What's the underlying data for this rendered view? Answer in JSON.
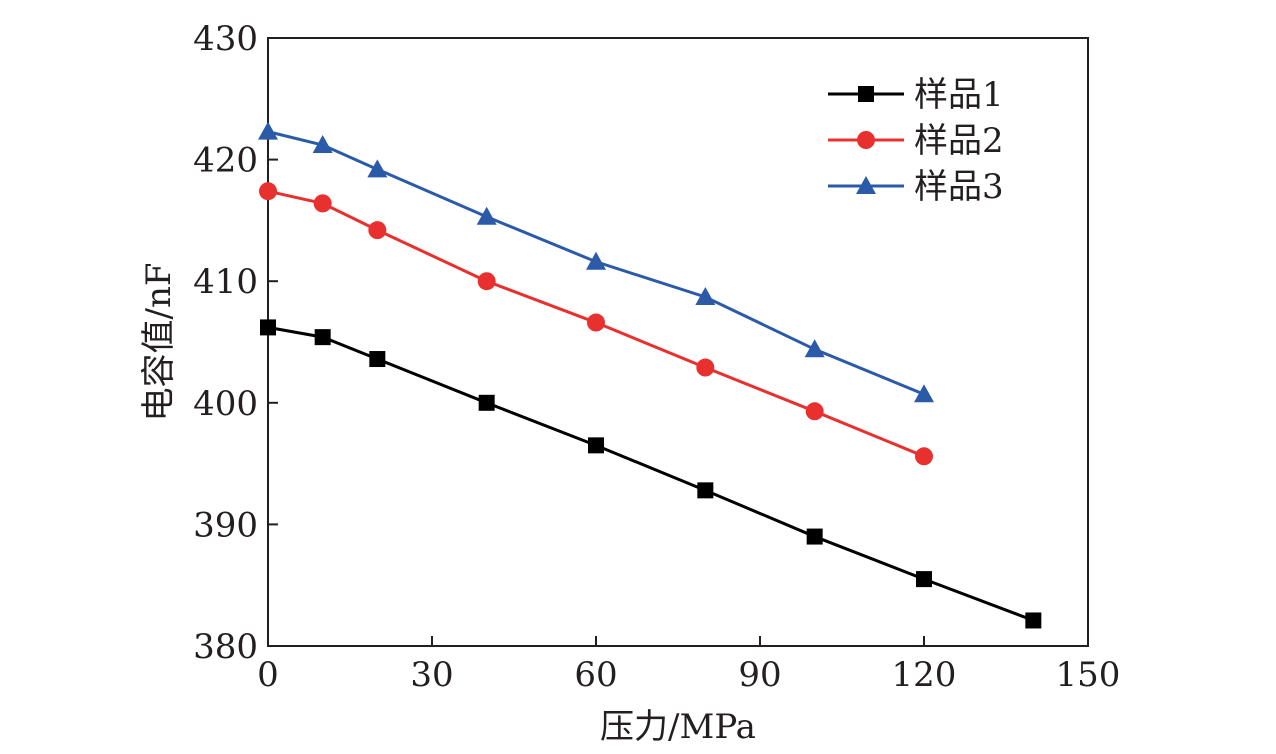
{
  "chart_data": {
    "type": "line",
    "title": "",
    "xlabel": "压力/MPa",
    "ylabel": "电容值/nF",
    "xlim": [
      0,
      150
    ],
    "ylim": [
      380,
      430
    ],
    "xticks": [
      0,
      30,
      60,
      90,
      120,
      150
    ],
    "yticks": [
      380,
      390,
      400,
      410,
      420,
      430
    ],
    "grid": false,
    "legend_position": "top-right",
    "series": [
      {
        "name": "样品1",
        "color": "#000000",
        "marker": "square",
        "x": [
          0,
          10,
          20,
          40,
          60,
          80,
          100,
          120,
          140
        ],
        "y": [
          406.2,
          405.4,
          403.6,
          400.0,
          396.5,
          392.8,
          389.0,
          385.5,
          382.1
        ]
      },
      {
        "name": "样品2",
        "color": "#e8312f",
        "marker": "circle",
        "x": [
          0,
          10,
          20,
          40,
          60,
          80,
          100,
          120
        ],
        "y": [
          417.4,
          416.4,
          414.2,
          410.0,
          406.6,
          402.9,
          399.3,
          395.6
        ]
      },
      {
        "name": "样品3",
        "color": "#2b5ba8",
        "marker": "triangle",
        "x": [
          0,
          10,
          20,
          40,
          60,
          80,
          100,
          120
        ],
        "y": [
          422.3,
          421.2,
          419.2,
          415.3,
          411.6,
          408.7,
          404.4,
          400.7
        ]
      }
    ]
  }
}
